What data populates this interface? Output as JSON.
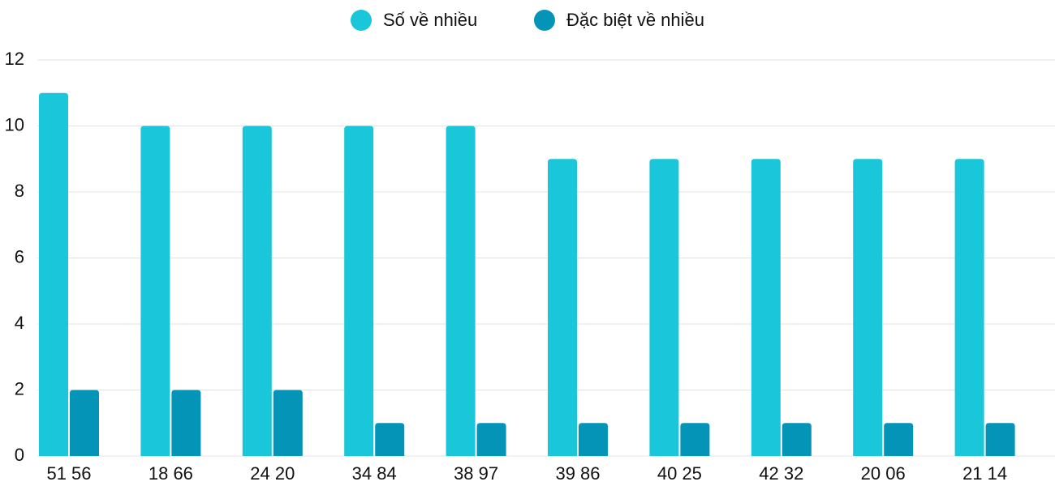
{
  "chart_data": {
    "type": "bar",
    "categories": [
      "51 56",
      "18 66",
      "24 20",
      "34 84",
      "38 97",
      "39 86",
      "40 25",
      "42 32",
      "20 06",
      "21 14"
    ],
    "series": [
      {
        "name": "Số về nhiều",
        "color": "#1ac6d9",
        "values": [
          11,
          10,
          10,
          10,
          10,
          9,
          9,
          9,
          9,
          9
        ]
      },
      {
        "name": "Đặc biệt về nhiều",
        "color": "#0494b8",
        "values": [
          2,
          2,
          2,
          1,
          1,
          1,
          1,
          1,
          1,
          1
        ]
      }
    ],
    "ylim": [
      0,
      12
    ],
    "yticks": [
      0,
      2,
      4,
      6,
      8,
      10,
      12
    ],
    "grid": true,
    "legend": "top"
  }
}
